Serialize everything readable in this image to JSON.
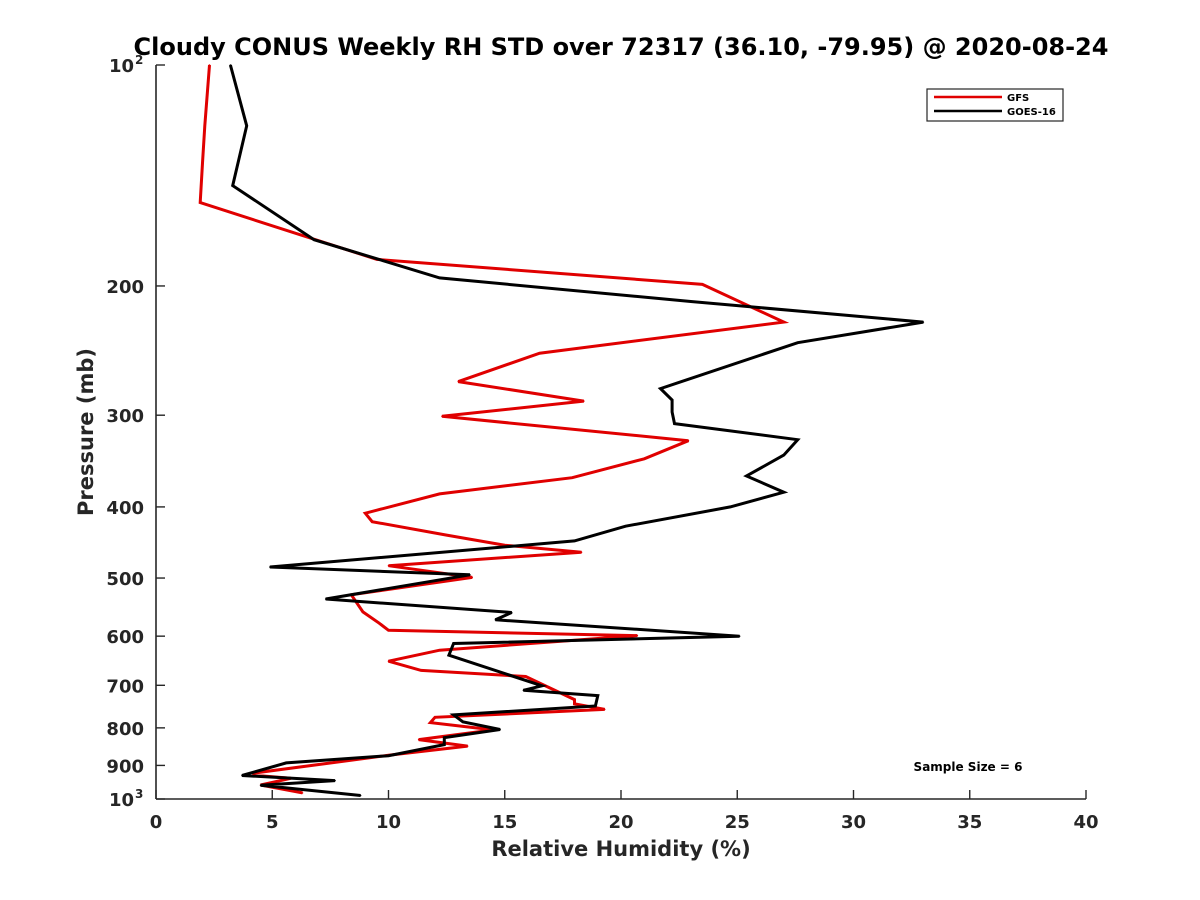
{
  "chart_data": {
    "type": "line",
    "title": "Cloudy CONUS Weekly RH STD over 72317 (36.10, -79.95) @ 2020-08-24",
    "xlabel": "Relative Humidity (%)",
    "ylabel": "Pressure (mb)",
    "xlim": [
      0,
      40
    ],
    "ylim": [
      100,
      1000
    ],
    "y_scale": "log",
    "y_reversed": true,
    "grid": false,
    "legend_position": "top-right",
    "x_ticks": [
      0,
      5,
      10,
      15,
      20,
      25,
      30,
      35,
      40
    ],
    "x_tick_labels": [
      "0",
      "5",
      "10",
      "15",
      "20",
      "25",
      "30",
      "35",
      "40"
    ],
    "y_ticks": [
      {
        "value": 100,
        "label": "10",
        "exp": "2"
      },
      {
        "value": 200,
        "label": "200",
        "exp": ""
      },
      {
        "value": 300,
        "label": "300",
        "exp": ""
      },
      {
        "value": 400,
        "label": "400",
        "exp": ""
      },
      {
        "value": 500,
        "label": "500",
        "exp": ""
      },
      {
        "value": 600,
        "label": "600",
        "exp": ""
      },
      {
        "value": 700,
        "label": "700",
        "exp": ""
      },
      {
        "value": 800,
        "label": "800",
        "exp": ""
      },
      {
        "value": 900,
        "label": "900",
        "exp": ""
      },
      {
        "value": 1000,
        "label": "10",
        "exp": "3"
      }
    ],
    "annotation": "Sample Size = 6",
    "series": [
      {
        "name": "GFS",
        "color": "#e00000",
        "points": [
          [
            2.3,
            100
          ],
          [
            2.1,
            121
          ],
          [
            2.0,
            136
          ],
          [
            1.9,
            154
          ],
          [
            9.5,
            184
          ],
          [
            23.5,
            199
          ],
          [
            27.0,
            224
          ],
          [
            16.5,
            247
          ],
          [
            13.0,
            270
          ],
          [
            18.4,
            287
          ],
          [
            12.3,
            301
          ],
          [
            22.9,
            325
          ],
          [
            21.0,
            344
          ],
          [
            17.9,
            365
          ],
          [
            12.2,
            384
          ],
          [
            9.0,
            408
          ],
          [
            9.3,
            419
          ],
          [
            12.5,
            437
          ],
          [
            15.0,
            451
          ],
          [
            18.3,
            461
          ],
          [
            10.0,
            481
          ],
          [
            13.6,
            499
          ],
          [
            8.4,
            527
          ],
          [
            8.9,
            556
          ],
          [
            9.6,
            576
          ],
          [
            10.0,
            589
          ],
          [
            20.7,
            599
          ],
          [
            12.2,
            627
          ],
          [
            10.0,
            649
          ],
          [
            11.4,
            668
          ],
          [
            15.9,
            681
          ],
          [
            18.0,
            732
          ],
          [
            18.0,
            742
          ],
          [
            19.3,
            755
          ],
          [
            12.0,
            774
          ],
          [
            11.8,
            787
          ],
          [
            14.5,
            805
          ],
          [
            11.3,
            830
          ],
          [
            13.4,
            847
          ],
          [
            10.0,
            872
          ],
          [
            4.2,
            922
          ],
          [
            4.2,
            928
          ],
          [
            5.8,
            937
          ],
          [
            4.5,
            957
          ],
          [
            6.3,
            981
          ]
        ]
      },
      {
        "name": "GOES-16",
        "color": "#000000",
        "points": [
          [
            3.2,
            100
          ],
          [
            3.9,
            121
          ],
          [
            3.3,
            146
          ],
          [
            6.8,
            173
          ],
          [
            12.2,
            195
          ],
          [
            23.0,
            210
          ],
          [
            33.0,
            224
          ],
          [
            27.6,
            239
          ],
          [
            21.7,
            276
          ],
          [
            22.2,
            286
          ],
          [
            22.2,
            297
          ],
          [
            22.3,
            308
          ],
          [
            27.6,
            324
          ],
          [
            27.0,
            340
          ],
          [
            25.4,
            363
          ],
          [
            27.0,
            382
          ],
          [
            24.7,
            400
          ],
          [
            20.2,
            425
          ],
          [
            18.0,
            445
          ],
          [
            4.9,
            483
          ],
          [
            13.5,
            495
          ],
          [
            7.3,
            534
          ],
          [
            15.3,
            557
          ],
          [
            14.6,
            570
          ],
          [
            25.1,
            600
          ],
          [
            12.8,
            614
          ],
          [
            12.6,
            637
          ],
          [
            16.6,
            701
          ],
          [
            15.8,
            711
          ],
          [
            19.0,
            723
          ],
          [
            18.9,
            747
          ],
          [
            12.8,
            768
          ],
          [
            13.2,
            785
          ],
          [
            14.8,
            804
          ],
          [
            12.4,
            825
          ],
          [
            12.4,
            843
          ],
          [
            10.0,
            873
          ],
          [
            5.6,
            893
          ],
          [
            3.7,
            929
          ],
          [
            7.7,
            944
          ],
          [
            4.5,
            958
          ],
          [
            8.8,
            989
          ]
        ]
      }
    ]
  }
}
